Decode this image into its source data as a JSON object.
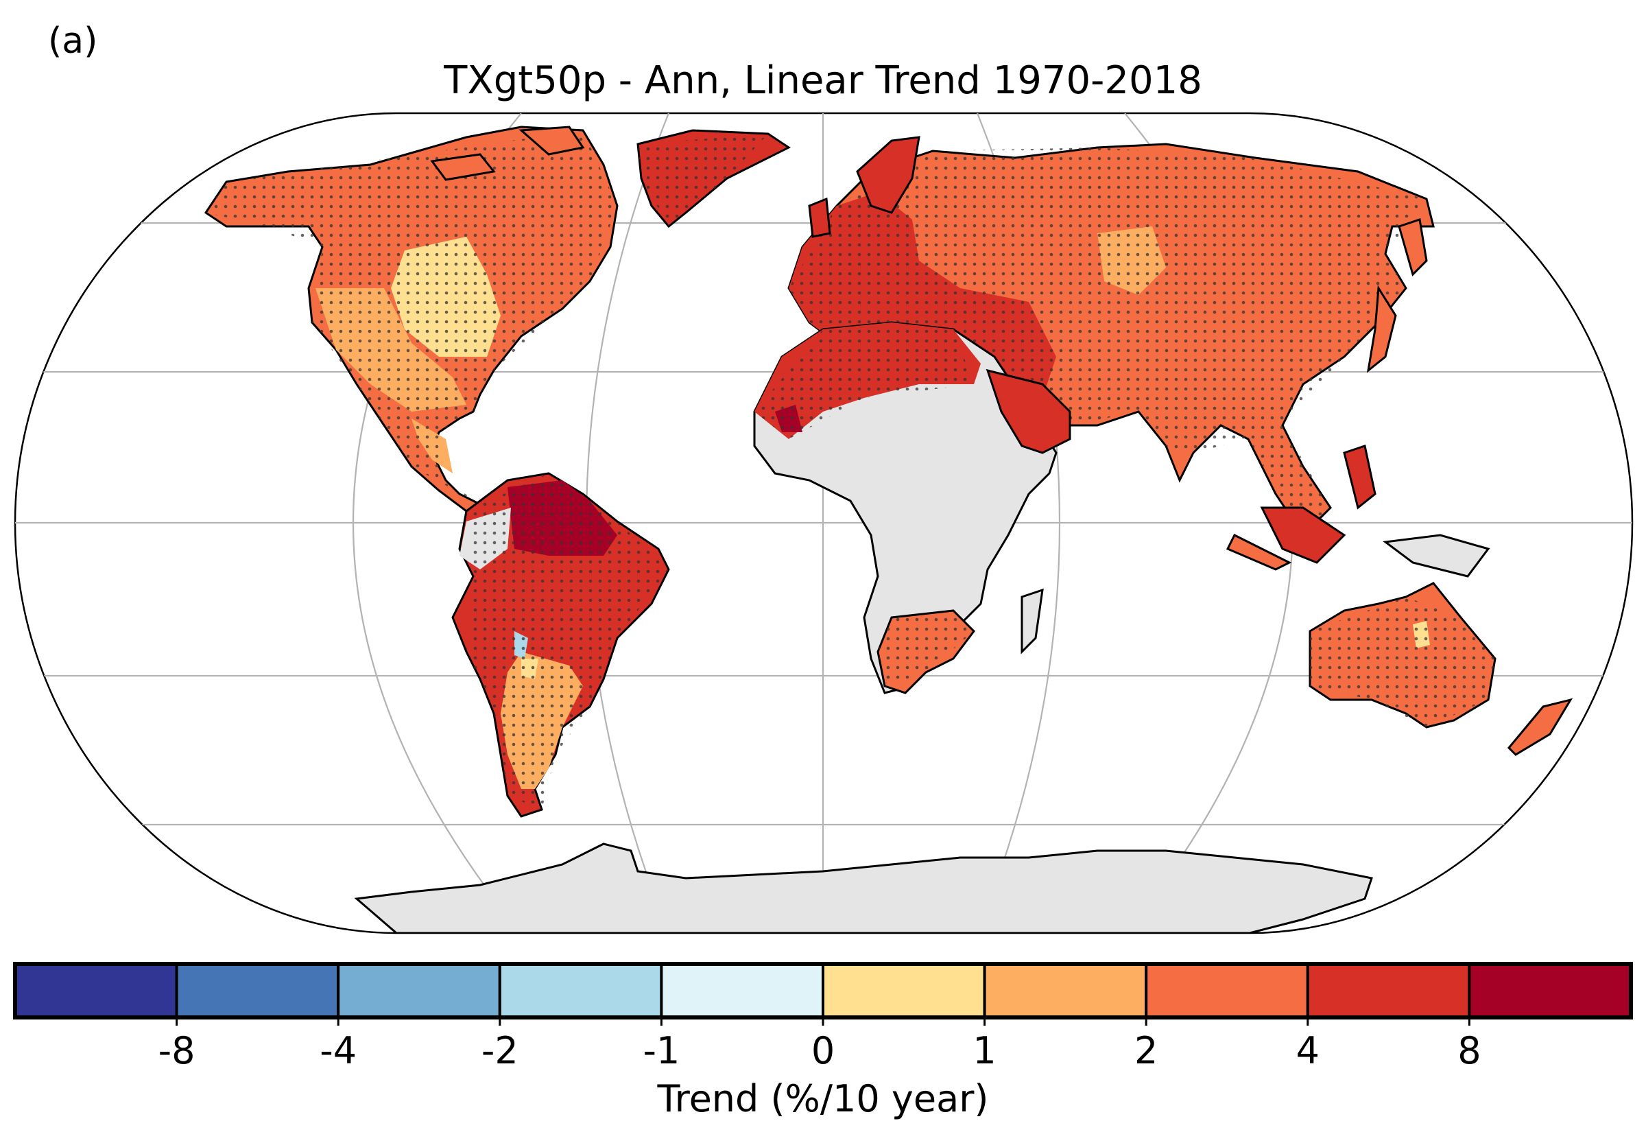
{
  "panel_label": "(a)",
  "title": "TXgt50p - Ann, Linear Trend 1970-2018",
  "colorbar": {
    "label": "Trend (%/10 year)",
    "tick_labels": [
      "-8",
      "-4",
      "-2",
      "-1",
      "0",
      "1",
      "2",
      "4",
      "8"
    ],
    "colors": [
      "#313695",
      "#4575b4",
      "#74add1",
      "#abd9e9",
      "#e0f3f8",
      "#fee090",
      "#fdae61",
      "#f46d43",
      "#d73027",
      "#a50026"
    ],
    "extend": "both"
  },
  "map": {
    "projection": "Robinson",
    "no_data_color": "#e5e5e5",
    "coastline_color": "#000000",
    "gridline_color": "#b3b3b3",
    "stippling": "dots indicate significant trends"
  },
  "regions": [
    {
      "name": "Alaska & N Canada",
      "trend_class": "2 to 4"
    },
    {
      "name": "Greenland",
      "trend_class": "4 to 8"
    },
    {
      "name": "Central US",
      "trend_class": "0 to 1"
    },
    {
      "name": "Western & Southern US",
      "trend_class": "1 to 2"
    },
    {
      "name": "Mexico",
      "trend_class": "2 to 4"
    },
    {
      "name": "Amazon",
      "trend_class": "> 8"
    },
    {
      "name": "Eastern Brazil",
      "trend_class": "4 to 8"
    },
    {
      "name": "Southern South America",
      "trend_class": "1 to 2"
    },
    {
      "name": "Europe",
      "trend_class": "4 to 8"
    },
    {
      "name": "North Africa",
      "trend_class": "4 to 8"
    },
    {
      "name": "Middle East",
      "trend_class": "4 to 8"
    },
    {
      "name": "Russia & Central Asia",
      "trend_class": "2 to 4"
    },
    {
      "name": "Mongolia",
      "trend_class": "1 to 2"
    },
    {
      "name": "South & East Asia",
      "trend_class": "2 to 4"
    },
    {
      "name": "Southern Africa",
      "trend_class": "2 to 4"
    },
    {
      "name": "Australia",
      "trend_class": "2 to 4"
    },
    {
      "name": "Central Africa",
      "trend_class": "no data"
    },
    {
      "name": "Antarctica",
      "trend_class": "no data"
    }
  ]
}
